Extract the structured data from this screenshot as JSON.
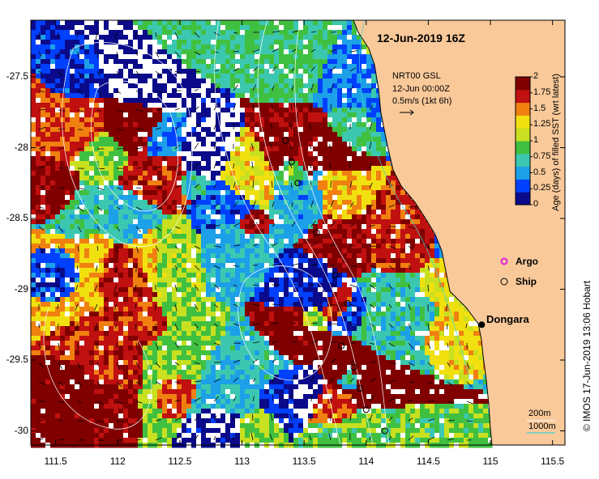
{
  "title": "12-Jun-2019 16Z",
  "annotation": {
    "product": "NRT00 GSL",
    "time": "12-Jun 00:00Z",
    "scale": "0.5m/s (1kt 6h)"
  },
  "legend": {
    "argo": "Argo",
    "ship": "Ship",
    "argo_color": "#e020e0"
  },
  "place": {
    "name": "Dongara",
    "lon": 114.93,
    "lat": -29.25
  },
  "isobaths": {
    "a": "200m",
    "b": "1000m",
    "color": "#40d0d0"
  },
  "colorbar": {
    "title": "Age (days) of filled SST (wrt latest)",
    "ticks": [
      "2",
      "1.75",
      "1.5",
      "1.25",
      "1",
      "0.75",
      "0.5",
      "0.25",
      "0"
    ],
    "range": [
      0,
      2
    ],
    "colors": [
      "#0a0a8a",
      "#0040ff",
      "#1ca0e8",
      "#3cc8b0",
      "#40c040",
      "#c8e020",
      "#f0e010",
      "#f08010",
      "#c01010",
      "#800000"
    ]
  },
  "credit": "© IMOS 17-Jun-2019 13:06 Hobart",
  "axes": {
    "x_ticks": [
      "111.5",
      "112",
      "112.5",
      "113",
      "113.5",
      "114",
      "114.5",
      "115",
      "115.5"
    ],
    "y_ticks": [
      "-27.5",
      "-28",
      "-28.5",
      "-29",
      "-29.5",
      "-30"
    ],
    "lon_range": [
      111.3,
      115.6
    ],
    "lat_range": [
      -30.1,
      -27.1
    ]
  },
  "land_color": "#f9c99a",
  "ship_stations": [
    [
      113.35,
      -27.95
    ],
    [
      113.4,
      -28.1
    ],
    [
      113.45,
      -28.25
    ],
    [
      113.6,
      -28.6
    ],
    [
      113.75,
      -28.9
    ],
    [
      113.85,
      -29.1
    ],
    [
      113.8,
      -29.4
    ],
    [
      113.9,
      -29.55
    ],
    [
      113.95,
      -29.7
    ],
    [
      114.0,
      -29.85
    ],
    [
      114.15,
      -30.0
    ]
  ]
}
